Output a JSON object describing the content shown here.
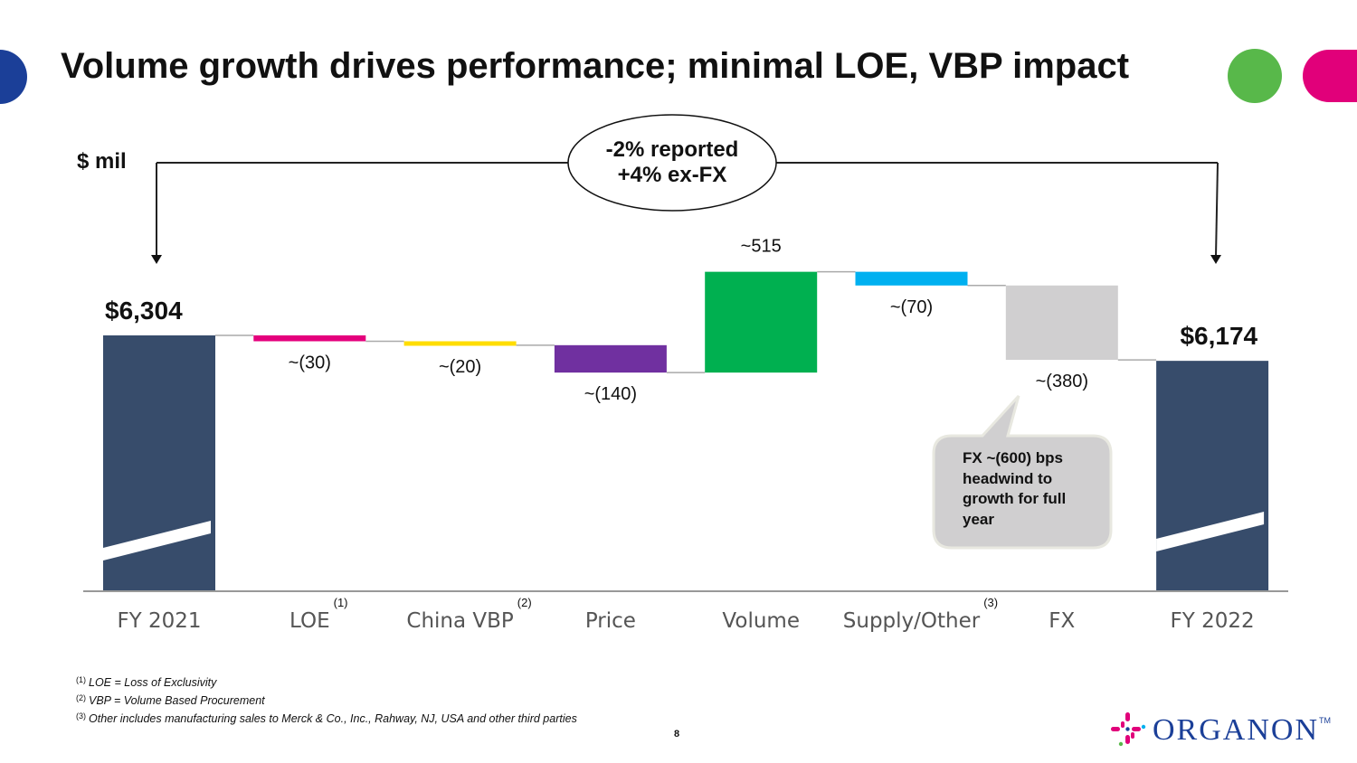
{
  "slide": {
    "title": "Volume growth drives performance; minimal LOE, VBP impact",
    "unit_label": "$ mil",
    "page_number": "8",
    "growth_oval": {
      "line1": "-2% reported",
      "line2": "+4% ex-FX"
    },
    "callout": {
      "lines": [
        "FX ~(600) bps",
        "headwind to",
        "growth for full",
        "year"
      ]
    },
    "footnotes": [
      {
        "marker": "(1)",
        "text": "LOE = Loss of Exclusivity"
      },
      {
        "marker": "(2)",
        "text": "VBP = Volume Based Procurement"
      },
      {
        "marker": "(3)",
        "text": "Other includes manufacturing sales to Merck & Co., Inc., Rahway, NJ, USA  and other third parties"
      }
    ],
    "logo": {
      "text": "ORGANON",
      "tm": "TM"
    },
    "colors": {
      "total": "#374c6b",
      "loe": "#e4007c",
      "china_vbp": "#ffdd00",
      "price": "#7030a0",
      "volume": "#00b050",
      "supply_other": "#00b0f0",
      "fx": "#d0cfd0",
      "deco_blue": "#1b3f98",
      "deco_green": "#58b84a",
      "deco_pink": "#e1007a"
    }
  },
  "chart_data": {
    "type": "waterfall",
    "title": "Volume growth drives performance; minimal LOE, VBP impact",
    "ylabel": "$ mil",
    "axis_break": true,
    "categories": [
      "FY 2021",
      "LOE",
      "China VBP",
      "Price",
      "Volume",
      "Supply/Other",
      "FX",
      "FY 2022"
    ],
    "category_superscripts": [
      "",
      "(1)",
      "(2)",
      "",
      "",
      "(3)",
      "",
      ""
    ],
    "values": [
      6304,
      -30,
      -20,
      -140,
      515,
      -70,
      -380,
      6174
    ],
    "kinds": [
      "total",
      "delta",
      "delta",
      "delta",
      "delta",
      "delta",
      "delta",
      "total"
    ],
    "labels": [
      "$6,304",
      "~(30)",
      "~(20)",
      "~(140)",
      "~515",
      "~(70)",
      "~(380)",
      "$6,174"
    ],
    "color_keys": [
      "total",
      "loe",
      "china_vbp",
      "price",
      "volume",
      "supply_other",
      "fx",
      "total"
    ],
    "annotations": [
      "-2% reported +4% ex-FX",
      "FX ~(600) bps headwind to growth for full year"
    ]
  }
}
